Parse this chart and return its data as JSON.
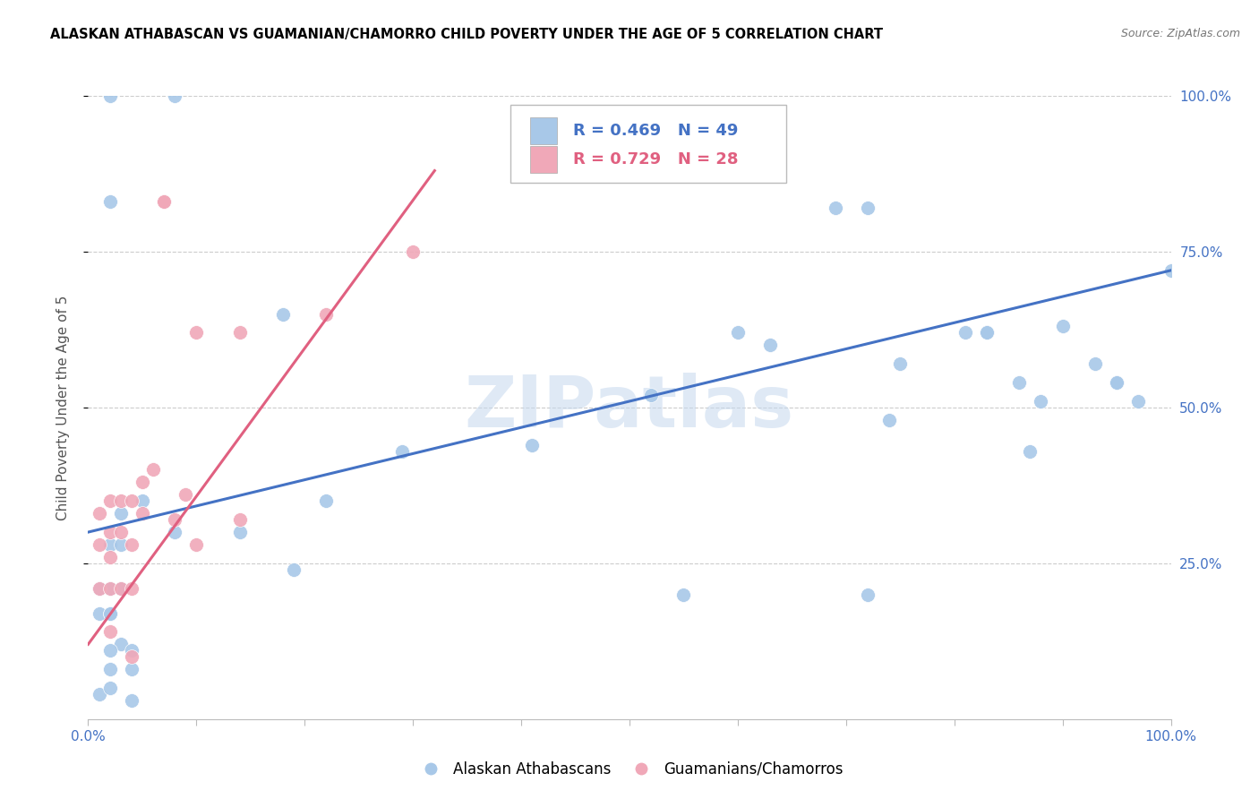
{
  "title": "ALASKAN ATHABASCAN VS GUAMANIAN/CHAMORRO CHILD POVERTY UNDER THE AGE OF 5 CORRELATION CHART",
  "source": "Source: ZipAtlas.com",
  "ylabel": "Child Poverty Under the Age of 5",
  "xlim": [
    0,
    1
  ],
  "ylim": [
    0,
    1
  ],
  "ytick_labels": [
    "25.0%",
    "50.0%",
    "75.0%",
    "100.0%"
  ],
  "ytick_positions": [
    0.25,
    0.5,
    0.75,
    1.0
  ],
  "watermark": "ZIPatlas",
  "legend_label_blue": "Alaskan Athabascans",
  "legend_label_pink": "Guamanians/Chamorros",
  "blue_R": "R = 0.469",
  "blue_N": "N = 49",
  "pink_R": "R = 0.729",
  "pink_N": "N = 28",
  "blue_color": "#A8C8E8",
  "pink_color": "#F0A8B8",
  "blue_line_color": "#4472C4",
  "pink_line_color": "#E06080",
  "background_color": "#FFFFFF",
  "grid_color": "#CCCCCC",
  "blue_x": [
    0.02,
    0.08,
    0.02,
    0.18,
    0.03,
    0.02,
    0.01,
    0.02,
    0.01,
    0.02,
    0.03,
    0.04,
    0.02,
    0.01,
    0.03,
    0.08,
    0.22,
    0.41,
    0.52,
    0.63,
    0.75,
    0.81,
    0.86,
    0.88,
    0.9,
    0.93,
    0.97,
    1.0,
    0.69,
    0.72,
    0.74,
    0.83,
    0.83,
    0.6,
    0.29,
    0.14,
    0.19,
    0.05,
    0.55,
    0.72,
    0.87,
    0.95,
    0.95,
    0.02,
    0.03,
    0.02,
    0.04,
    0.04,
    0.02
  ],
  "blue_y": [
    1.0,
    1.0,
    0.83,
    0.65,
    0.33,
    0.28,
    0.21,
    0.21,
    0.17,
    0.17,
    0.28,
    0.08,
    0.08,
    0.04,
    0.12,
    0.3,
    0.35,
    0.44,
    0.52,
    0.6,
    0.57,
    0.62,
    0.54,
    0.51,
    0.63,
    0.57,
    0.51,
    0.72,
    0.82,
    0.82,
    0.48,
    0.62,
    0.62,
    0.62,
    0.43,
    0.3,
    0.24,
    0.35,
    0.2,
    0.2,
    0.43,
    0.54,
    0.54,
    0.17,
    0.21,
    0.11,
    0.11,
    0.03,
    0.05
  ],
  "pink_x": [
    0.01,
    0.01,
    0.01,
    0.02,
    0.02,
    0.02,
    0.02,
    0.02,
    0.03,
    0.03,
    0.03,
    0.04,
    0.04,
    0.04,
    0.04,
    0.05,
    0.05,
    0.06,
    0.07,
    0.07,
    0.08,
    0.09,
    0.1,
    0.1,
    0.14,
    0.14,
    0.22,
    0.3
  ],
  "pink_y": [
    0.33,
    0.28,
    0.21,
    0.35,
    0.3,
    0.26,
    0.21,
    0.14,
    0.35,
    0.3,
    0.21,
    0.35,
    0.28,
    0.21,
    0.1,
    0.38,
    0.33,
    0.4,
    0.83,
    0.83,
    0.32,
    0.36,
    0.62,
    0.28,
    0.62,
    0.32,
    0.65,
    0.75
  ],
  "blue_trend_x": [
    0,
    1
  ],
  "blue_trend_y": [
    0.3,
    0.72
  ],
  "pink_trend_x": [
    0.0,
    0.32
  ],
  "pink_trend_y": [
    0.12,
    0.88
  ]
}
